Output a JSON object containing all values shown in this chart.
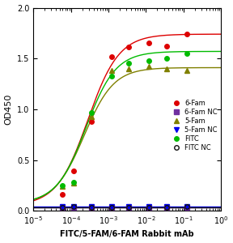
{
  "title": "",
  "xlabel": "FITC/5-FAM/6-FAM Rabbit mAb",
  "ylabel": "OD450",
  "xlim_log": [
    -5,
    0
  ],
  "ylim": [
    0.0,
    2.0
  ],
  "yticks": [
    0.0,
    0.5,
    1.0,
    1.5,
    2.0
  ],
  "background_color": "#ffffff",
  "series": [
    {
      "label": "6-Fam",
      "color": "#dd0000",
      "marker": "o",
      "marker_size": 4,
      "marker_facecolor": "#dd0000",
      "x_points": [
        6e-05,
        0.00012,
        0.00035,
        0.0012,
        0.0035,
        0.012,
        0.035,
        0.12
      ],
      "y_points": [
        0.16,
        0.39,
        0.88,
        1.52,
        1.61,
        1.65,
        1.62,
        1.74
      ],
      "hill_bottom": 0.05,
      "hill_top": 1.74,
      "hill_ec50_log": -3.55,
      "hill_n": 1.05
    },
    {
      "label": "6-Fam NC",
      "color": "#7030a0",
      "marker": "s",
      "marker_size": 4,
      "marker_facecolor": "#7030a0",
      "x_points": [
        6e-05,
        0.00012,
        0.00035,
        0.0012,
        0.0035,
        0.012,
        0.035,
        0.12
      ],
      "y_points": [
        0.03,
        0.03,
        0.03,
        0.03,
        0.03,
        0.03,
        0.03,
        0.03
      ],
      "hill_bottom": 0.03,
      "hill_top": 0.03,
      "hill_ec50_log": -3.0,
      "hill_n": 1.0
    },
    {
      "label": "5-Fam",
      "color": "#808000",
      "marker": "^",
      "marker_size": 4,
      "marker_facecolor": "#808000",
      "x_points": [
        6e-05,
        0.00012,
        0.00035,
        0.0012,
        0.0035,
        0.012,
        0.035,
        0.12
      ],
      "y_points": [
        0.24,
        0.27,
        0.93,
        1.38,
        1.4,
        1.42,
        1.4,
        1.38
      ],
      "hill_bottom": 0.07,
      "hill_top": 1.41,
      "hill_ec50_log": -3.65,
      "hill_n": 1.1
    },
    {
      "label": "5-Fam NC",
      "color": "#0000ee",
      "marker": "v",
      "marker_size": 4,
      "marker_facecolor": "#0000ee",
      "x_points": [
        6e-05,
        0.00012,
        0.00035,
        0.0012,
        0.0035,
        0.012,
        0.035,
        0.12
      ],
      "y_points": [
        0.04,
        0.04,
        0.04,
        0.04,
        0.04,
        0.04,
        0.04,
        0.04
      ],
      "hill_bottom": 0.04,
      "hill_top": 0.04,
      "hill_ec50_log": -3.0,
      "hill_n": 1.0
    },
    {
      "label": "FITC",
      "color": "#00bb00",
      "marker": "o",
      "marker_size": 4,
      "marker_facecolor": "#00bb00",
      "x_points": [
        6e-05,
        0.00012,
        0.00035,
        0.0012,
        0.0035,
        0.012,
        0.035,
        0.12
      ],
      "y_points": [
        0.25,
        0.28,
        0.97,
        1.33,
        1.45,
        1.48,
        1.5,
        1.55
      ],
      "hill_bottom": 0.07,
      "hill_top": 1.57,
      "hill_ec50_log": -3.6,
      "hill_n": 1.1
    },
    {
      "label": "FITC NC",
      "color": "#111111",
      "marker": "o",
      "marker_size": 4,
      "marker_facecolor": "none",
      "x_points": [
        6e-05,
        0.00012,
        0.00035,
        0.0012,
        0.0035,
        0.012,
        0.035,
        0.12
      ],
      "y_points": [
        0.03,
        0.04,
        0.03,
        0.03,
        0.03,
        0.03,
        0.03,
        0.04
      ],
      "hill_bottom": 0.03,
      "hill_top": 0.03,
      "hill_ec50_log": -3.0,
      "hill_n": 1.0
    }
  ]
}
